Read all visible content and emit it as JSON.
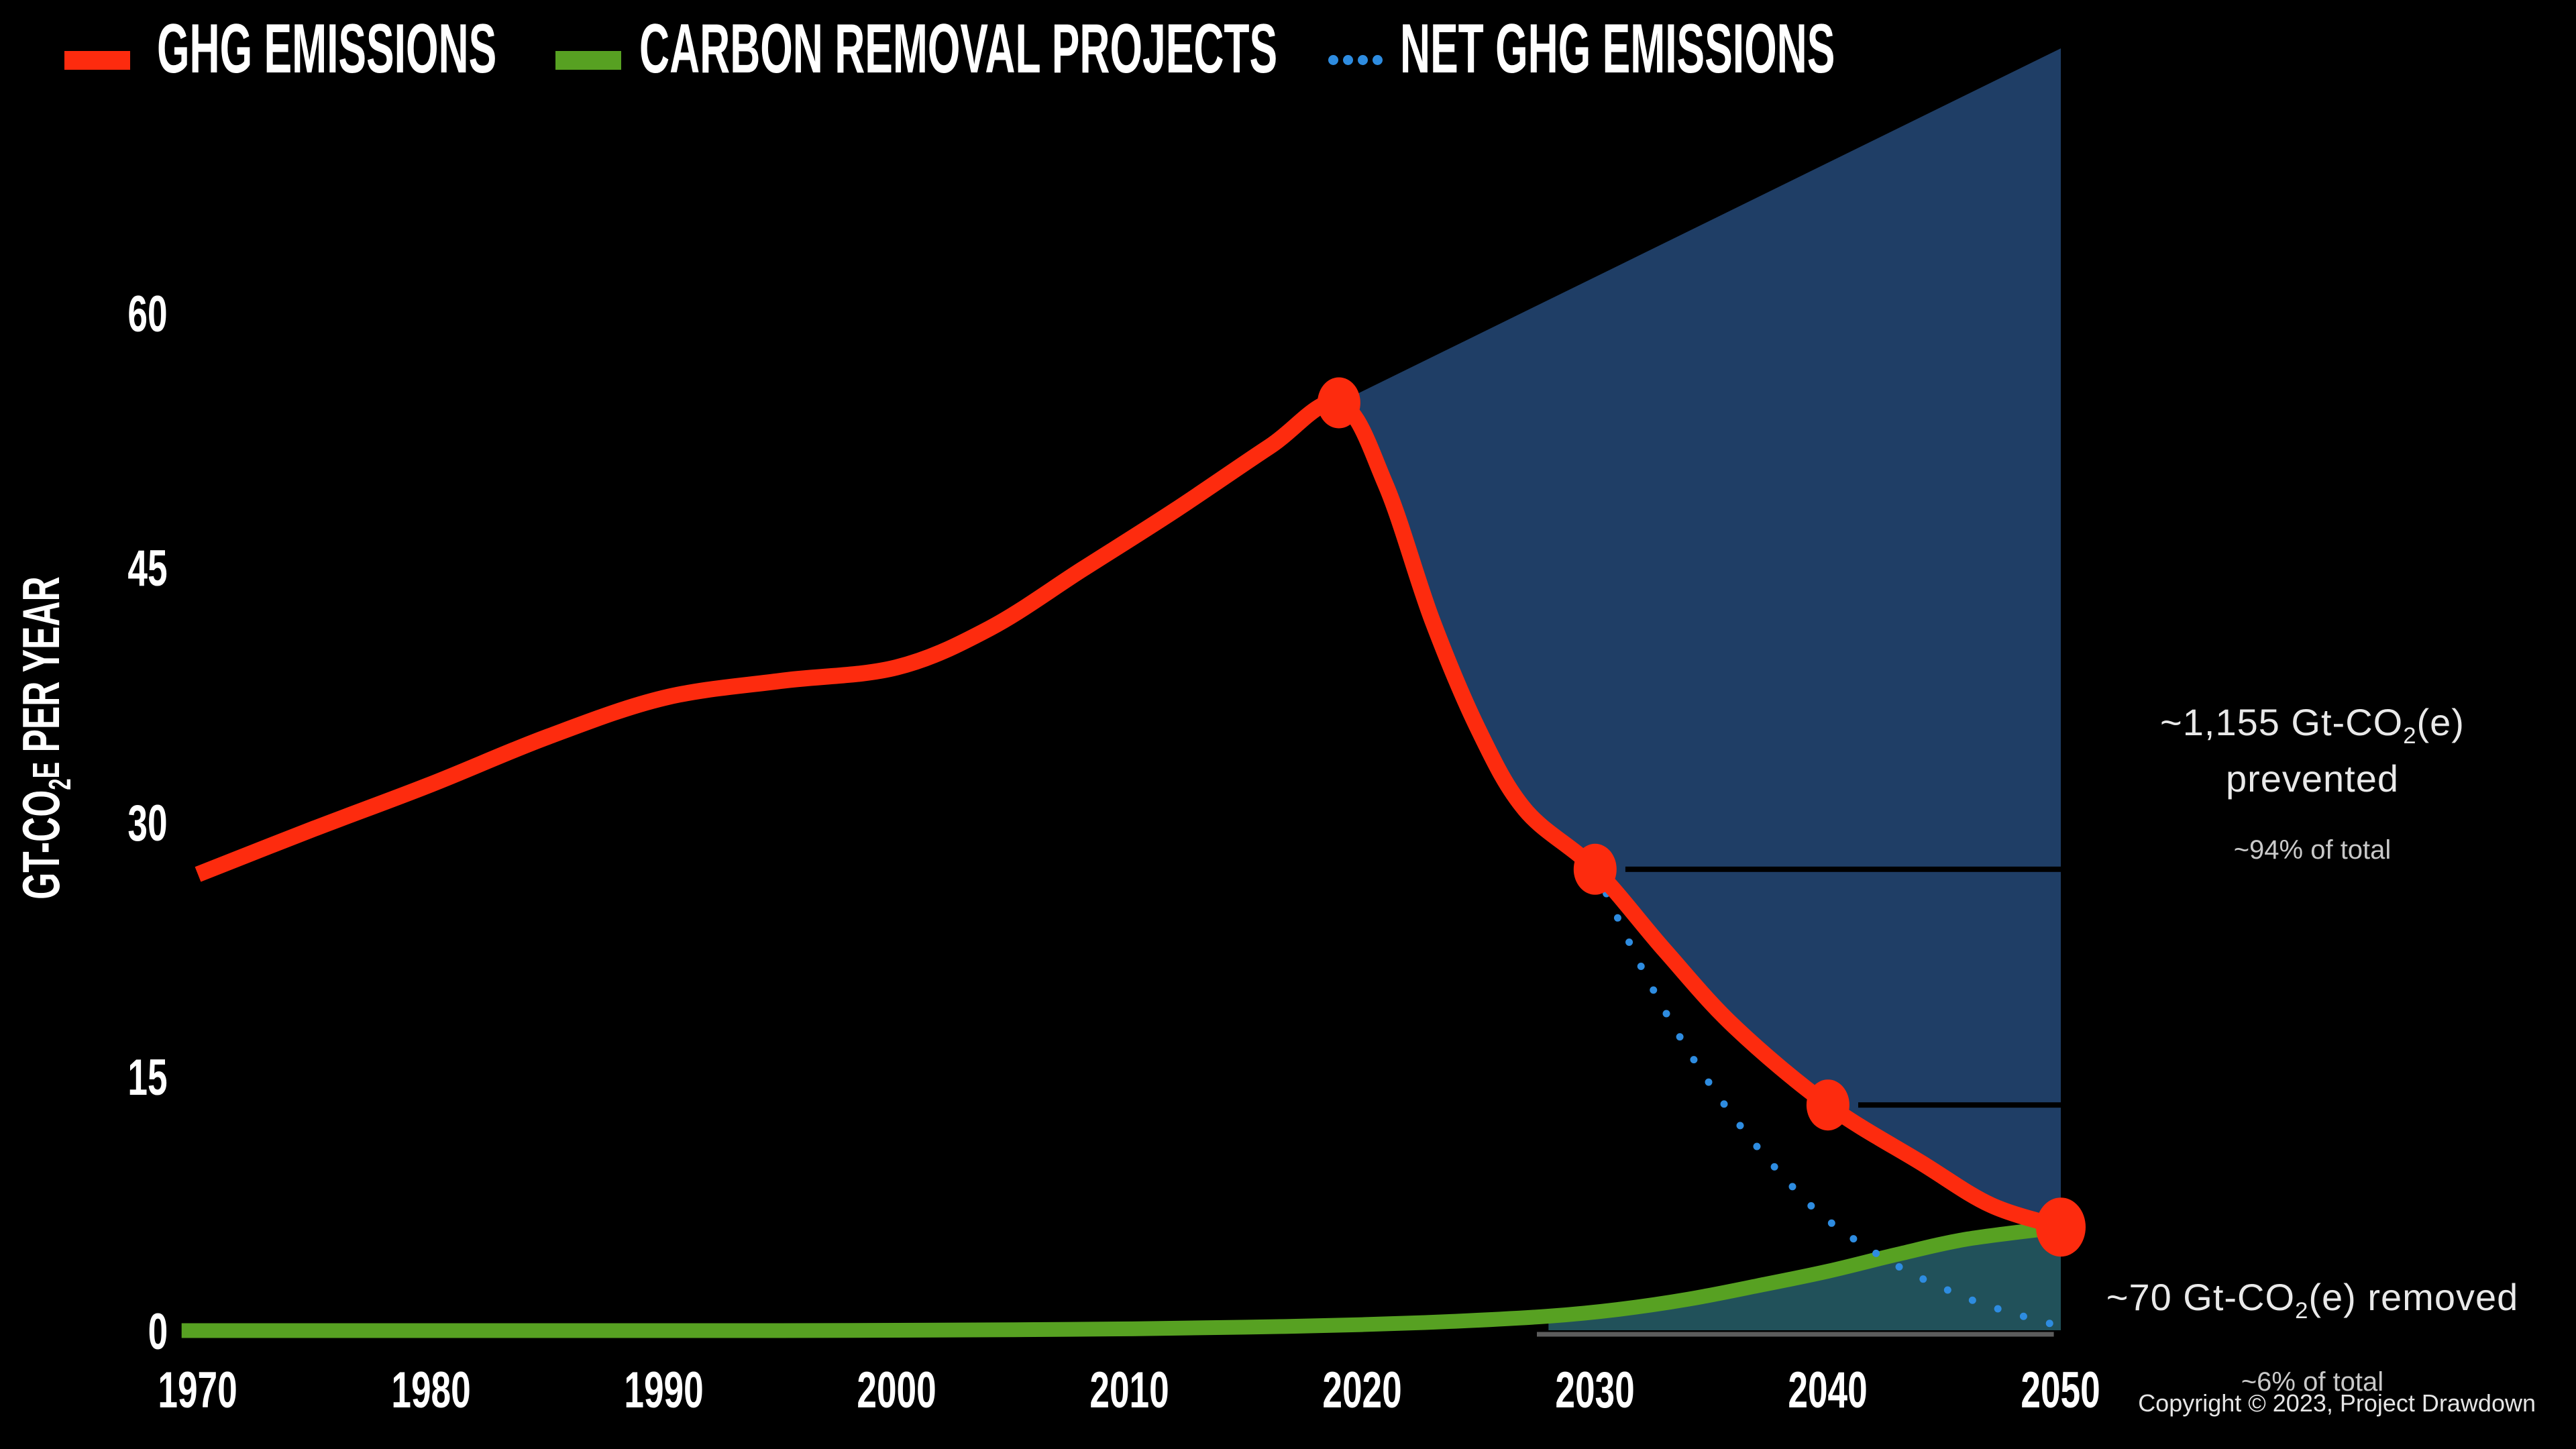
{
  "legend": {
    "items": [
      {
        "label": "GHG EMISSIONS",
        "swatch": "line",
        "color": "#fd2b0e"
      },
      {
        "label": "CARBON REMOVAL PROJECTS",
        "swatch": "line",
        "color": "#57a122"
      },
      {
        "label": "NET GHG EMISSIONS",
        "swatch": "dots",
        "color": "#2e8ce0"
      }
    ]
  },
  "y_axis": {
    "title_prefix": "GT-CO",
    "title_sub": "2",
    "title_small": "E",
    "title_suffix": " PER YEAR"
  },
  "annotations": {
    "prevented": {
      "line1_prefix": "~1,155 Gt-CO",
      "line1_sub": "2",
      "line1_suffix": "(e) prevented",
      "line2": "~94% of total"
    },
    "removed": {
      "line1_prefix": "~70 Gt-CO",
      "line1_sub": "2",
      "line1_suffix": "(e) removed",
      "line2": "~6% of total"
    }
  },
  "footer": {
    "copyright": "Copyright © 2023, Project Drawdown"
  },
  "colors": {
    "red": "#fd2b0e",
    "green": "#57a122",
    "net_blue": "#2e8ce0",
    "navy": "#1f3e66",
    "teal": "#21515a",
    "axis_gray": "#5c5c5c",
    "text": "#ffffff",
    "text_dim": "#c9c9c9",
    "bg": "#000000"
  },
  "chart_data": {
    "type": "line",
    "ylabel": "Gt-CO2e per year",
    "x_ticks": [
      1970,
      1980,
      1990,
      2000,
      2010,
      2020,
      2030,
      2040,
      2050
    ],
    "y_ticks": [
      0,
      15,
      30,
      45,
      60
    ],
    "xlim": [
      1970,
      2050
    ],
    "ylim": [
      0,
      78
    ],
    "grid": false,
    "legend_position": "top-left",
    "series": [
      {
        "name": "GHG Emissions",
        "color": "#fd2b0e",
        "style": "solid",
        "points": [
          [
            1970,
            27
          ],
          [
            1975,
            29.7
          ],
          [
            1980,
            32.3
          ],
          [
            1985,
            35.1
          ],
          [
            1990,
            37.4
          ],
          [
            1995,
            38.4
          ],
          [
            2000,
            39.2
          ],
          [
            2004,
            41.5
          ],
          [
            2008,
            45
          ],
          [
            2012,
            48.5
          ],
          [
            2016,
            52.2
          ],
          [
            2019,
            54.8
          ],
          [
            2021,
            50
          ],
          [
            2023,
            42
          ],
          [
            2025,
            35.5
          ],
          [
            2027,
            30.8
          ],
          [
            2030,
            27.3
          ],
          [
            2033,
            22.5
          ],
          [
            2036,
            18
          ],
          [
            2040,
            13.4
          ],
          [
            2044,
            10
          ],
          [
            2047,
            7.5
          ],
          [
            2050,
            6.2
          ]
        ]
      },
      {
        "name": "Carbon Removal Projects",
        "color": "#57a122",
        "style": "solid",
        "points": [
          [
            1969.3,
            0.1
          ],
          [
            1975,
            0.1
          ],
          [
            1980,
            0.1
          ],
          [
            1985,
            0.1
          ],
          [
            1990,
            0.1
          ],
          [
            1995,
            0.1
          ],
          [
            2000,
            0.12
          ],
          [
            2005,
            0.15
          ],
          [
            2010,
            0.2
          ],
          [
            2015,
            0.3
          ],
          [
            2020,
            0.45
          ],
          [
            2024,
            0.65
          ],
          [
            2028,
            0.95
          ],
          [
            2031,
            1.35
          ],
          [
            2034,
            1.95
          ],
          [
            2037,
            2.75
          ],
          [
            2040,
            3.6
          ],
          [
            2043,
            4.6
          ],
          [
            2046,
            5.5
          ],
          [
            2050,
            6.2
          ]
        ]
      },
      {
        "name": "Net GHG Emissions",
        "color": "#2e8ce0",
        "style": "dotted",
        "points": [
          [
            2030,
            27.3
          ],
          [
            2032,
            21.5
          ],
          [
            2034,
            16.6
          ],
          [
            2036,
            12.6
          ],
          [
            2038,
            9.3
          ],
          [
            2040,
            6.6
          ],
          [
            2043,
            3.9
          ],
          [
            2046,
            2.0
          ],
          [
            2048,
            1.1
          ],
          [
            2050,
            0.35
          ]
        ]
      },
      {
        "name": "Business-as-usual projection (top edge of prevented area)",
        "color": "#1f3e66",
        "style": "area-edge",
        "points": [
          [
            2019,
            54.8
          ],
          [
            2050,
            75.7
          ]
        ]
      }
    ],
    "areas": [
      {
        "name": "emissions prevented",
        "color": "#1f3e66",
        "between": [
          "bau-projection",
          "ghg-emissions"
        ],
        "from": 2019,
        "to": 2050
      },
      {
        "name": "carbon removed",
        "color": "#21515a",
        "under": "carbon-removal",
        "from": 2028,
        "to": 2050
      }
    ],
    "markers": [
      {
        "year": 2019,
        "value": 54.8
      },
      {
        "year": 2030,
        "value": 27.3
      },
      {
        "year": 2040,
        "value": 13.4
      },
      {
        "year": 2050,
        "value": 6.2
      }
    ],
    "reference_lines": [
      {
        "value": 27.3,
        "from": 2031.3,
        "to": 2050
      },
      {
        "value": 13.4,
        "from": 2041.3,
        "to": 2050
      }
    ],
    "baseline_segment": {
      "from_x_year": 2027.5,
      "to_x_year": 2049.7,
      "value": 0,
      "color": "#5c5c5c"
    }
  }
}
